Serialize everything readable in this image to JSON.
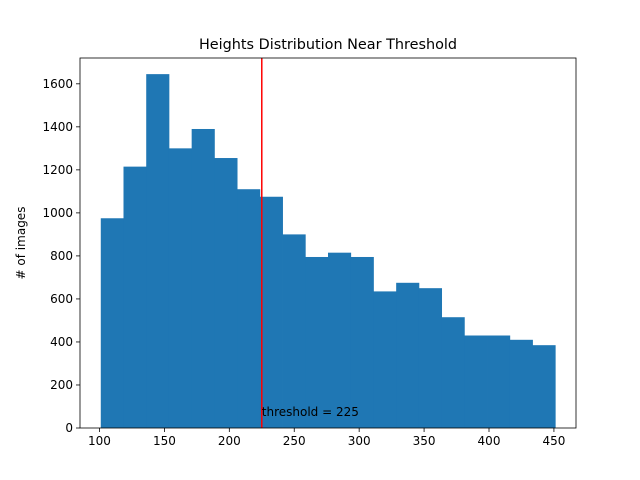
{
  "chart_data": {
    "type": "bar",
    "title": "Heights Distribution Near Threshold",
    "xlabel": "",
    "ylabel": "# of images",
    "xlim": [
      85,
      467
    ],
    "ylim": [
      0,
      1720
    ],
    "xticks": [
      100,
      150,
      200,
      250,
      300,
      350,
      400,
      450
    ],
    "yticks": [
      0,
      200,
      400,
      600,
      800,
      1000,
      1200,
      1400,
      1600
    ],
    "bins": [
      [
        101,
        118.5,
        975
      ],
      [
        118.5,
        136,
        1215
      ],
      [
        136,
        153.5,
        1645
      ],
      [
        153.5,
        171,
        1300
      ],
      [
        171,
        188.5,
        1390
      ],
      [
        188.5,
        206,
        1255
      ],
      [
        206,
        223.5,
        1110
      ],
      [
        223.5,
        241,
        1075
      ],
      [
        241,
        258.5,
        900
      ],
      [
        258.5,
        276,
        795
      ],
      [
        276,
        293.5,
        815
      ],
      [
        293.5,
        311,
        795
      ],
      [
        311,
        328.5,
        635
      ],
      [
        328.5,
        346,
        675
      ],
      [
        346,
        363.5,
        650
      ],
      [
        363.5,
        381,
        515
      ],
      [
        381,
        398.5,
        430
      ],
      [
        398.5,
        416,
        430
      ],
      [
        416,
        433.5,
        410
      ],
      [
        433.5,
        451,
        385
      ]
    ],
    "bar_color": "#1f77b4",
    "threshold": {
      "x": 225,
      "label": "threshold = 225",
      "color": "#ff0000"
    },
    "grid": false
  }
}
